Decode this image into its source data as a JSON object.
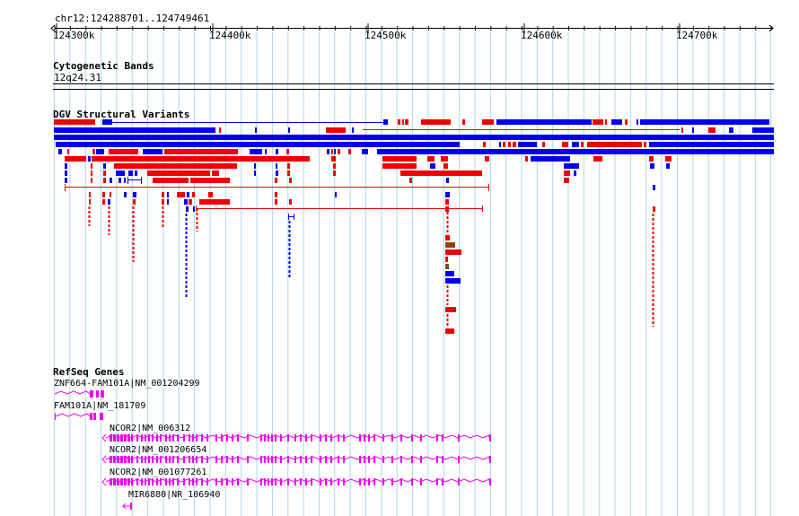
{
  "region": {
    "location_label": "chr12:124288701..124749461",
    "ruler_ticks": [
      {
        "bp": 124300000,
        "label": "124300k"
      },
      {
        "bp": 124400000,
        "label": "124400k"
      },
      {
        "bp": 124500000,
        "label": "124500k"
      },
      {
        "bp": 124600000,
        "label": "124600k"
      },
      {
        "bp": 124700000,
        "label": "124700k"
      }
    ]
  },
  "tracks": {
    "cytoband": {
      "title": "Cytogenetic Bands",
      "band": "12q24.31"
    },
    "dgv": {
      "title": "DGV Structural Variants"
    },
    "refseq": {
      "title": "RefSeq Genes"
    }
  },
  "colors": {
    "gain": "#0000ee",
    "loss": "#ee0000",
    "gain_loss": "#8b4513",
    "gene": "#ee00ee",
    "grid": "#add8e6"
  },
  "genes": [
    {
      "label": "ZNF664-FAM101A|NM_001204299"
    },
    {
      "label": "FAM101A|NM_181709"
    },
    {
      "label": "NCOR2|NM_006312"
    },
    {
      "label": "NCOR2|NM_001206654"
    },
    {
      "label": "NCOR2|NM_001077261"
    },
    {
      "label": "MIR6880|NR_106940"
    }
  ]
}
